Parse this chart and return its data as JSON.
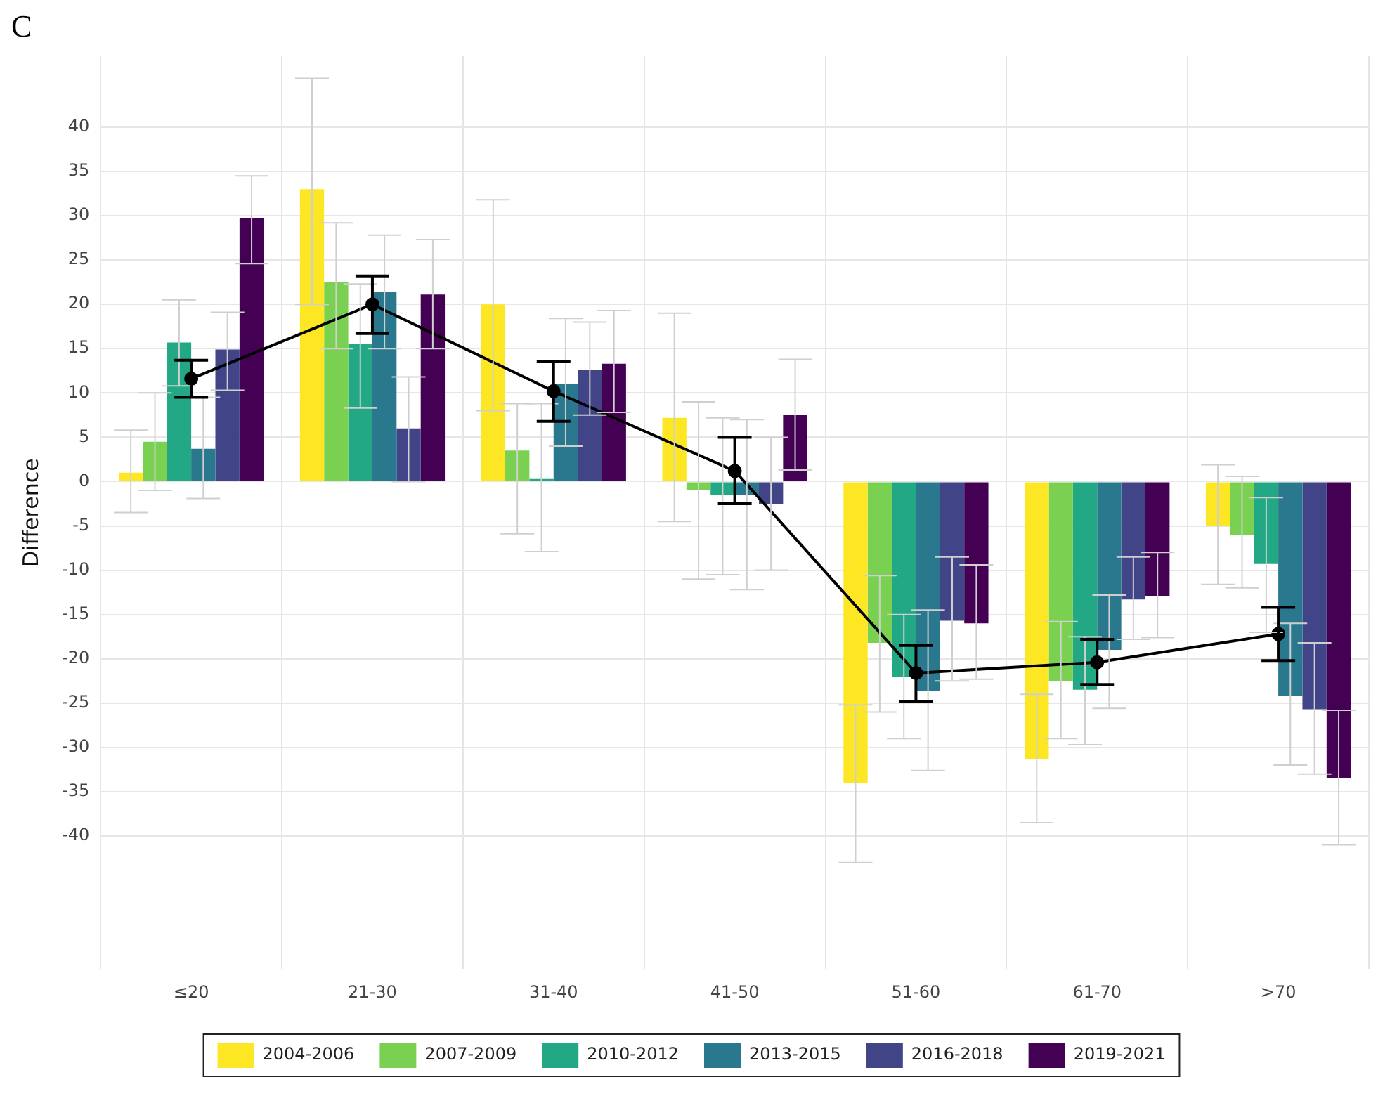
{
  "chart_data": {
    "type": "bar",
    "ylabel": "Difference",
    "annotations": [
      "C"
    ],
    "categories": [
      "≤20",
      "21-30",
      "31-40",
      "41-50",
      "51-60",
      "61-70",
      ">70"
    ],
    "ylim": [
      -55,
      48
    ],
    "yticks": [
      -40,
      -35,
      -30,
      -25,
      -20,
      -15,
      -10,
      -5,
      0,
      5,
      10,
      15,
      20,
      25,
      30,
      35,
      40
    ],
    "grid": true,
    "legend": "bottom",
    "series": [
      {
        "name": "2004-2006",
        "color": "#fde725",
        "values": [
          1,
          33,
          20,
          7.2,
          -34,
          -31.3,
          -5
        ],
        "errors": [
          [
            -3.5,
            5.8
          ],
          [
            20,
            45.5
          ],
          [
            8,
            31.8
          ],
          [
            -4.5,
            19
          ],
          [
            -43,
            -25.2
          ],
          [
            -38.5,
            -24
          ],
          [
            -11.6,
            1.9
          ]
        ]
      },
      {
        "name": "2007-2009",
        "color": "#7ad151",
        "values": [
          4.5,
          22.5,
          3.5,
          -1,
          -18.2,
          -22.5,
          -6
        ],
        "errors": [
          [
            -1,
            10
          ],
          [
            15,
            29.2
          ],
          [
            -5.9,
            8.8
          ],
          [
            -11,
            9
          ],
          [
            -26,
            -10.6
          ],
          [
            -29,
            -15.8
          ],
          [
            -12,
            0.6
          ]
        ]
      },
      {
        "name": "2010-2012",
        "color": "#22a884",
        "values": [
          15.7,
          15.5,
          0.3,
          -1.5,
          -22,
          -23.5,
          -9.3
        ],
        "errors": [
          [
            10.8,
            20.5
          ],
          [
            8.3,
            22.3
          ],
          [
            -7.9,
            8.8
          ],
          [
            -10.5,
            7.2
          ],
          [
            -29,
            -15
          ],
          [
            -29.7,
            -17.5
          ],
          [
            -17,
            -1.8
          ]
        ]
      },
      {
        "name": "2013-2015",
        "color": "#2a788e",
        "values": [
          3.7,
          21.4,
          11,
          -1.5,
          -23.6,
          -19,
          -24.2
        ],
        "errors": [
          [
            -1.9,
            9.5
          ],
          [
            15,
            27.8
          ],
          [
            4,
            18.4
          ],
          [
            -12.2,
            7
          ],
          [
            -32.6,
            -14.5
          ],
          [
            -25.6,
            -12.8
          ],
          [
            -32,
            -16
          ]
        ]
      },
      {
        "name": "2016-2018",
        "color": "#414487",
        "values": [
          14.9,
          6,
          12.6,
          -2.5,
          -15.7,
          -13.3,
          -25.7
        ],
        "errors": [
          [
            10.3,
            19.1
          ],
          [
            0,
            11.8
          ],
          [
            7.5,
            18
          ],
          [
            -10,
            5
          ],
          [
            -22.5,
            -8.5
          ],
          [
            -17.8,
            -8.5
          ],
          [
            -33,
            -18.2
          ]
        ]
      },
      {
        "name": "2019-2021",
        "color": "#440154",
        "values": [
          29.7,
          21.1,
          13.3,
          7.5,
          -16,
          -12.9,
          -33.5
        ],
        "errors": [
          [
            24.6,
            34.5
          ],
          [
            15,
            27.3
          ],
          [
            7.8,
            19.3
          ],
          [
            1.3,
            13.8
          ],
          [
            -22.3,
            -9.4
          ],
          [
            -17.6,
            -8
          ],
          [
            -41,
            -25.8
          ]
        ]
      },
      {
        "type": "line",
        "color": "#000000",
        "marker": "circle",
        "values": [
          11.6,
          20,
          10.2,
          1.2,
          -21.6,
          -20.4,
          -17.2
        ],
        "errors": [
          [
            9.5,
            13.7
          ],
          [
            16.7,
            23.2
          ],
          [
            6.8,
            13.6
          ],
          [
            -2.5,
            5
          ],
          [
            -24.8,
            -18.5
          ],
          [
            -22.9,
            -17.8
          ],
          [
            -20.2,
            -14.2
          ]
        ]
      }
    ]
  }
}
